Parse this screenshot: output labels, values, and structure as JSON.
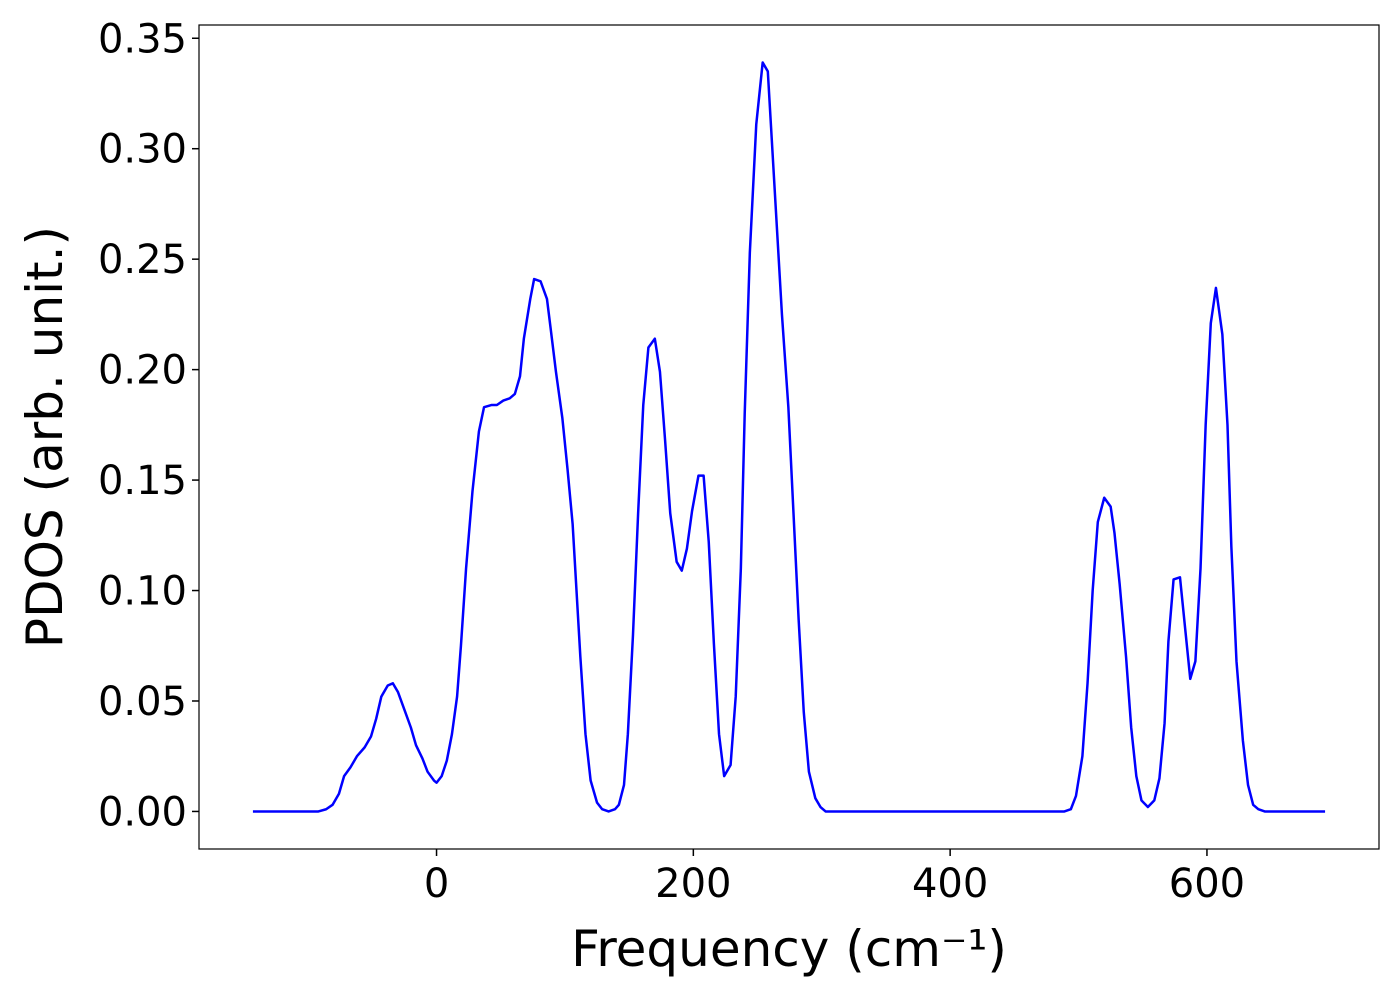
{
  "chart_data": {
    "type": "line",
    "x_label": "Frequency (cm⁻¹)",
    "y_label": "PDOS (arb. unit.)",
    "xlim": [
      -185,
      734
    ],
    "ylim": [
      -0.017,
      0.356
    ],
    "xticks": [
      0,
      200,
      400,
      600
    ],
    "yticks": [
      {
        "value": 0,
        "label": "0.00"
      },
      0.05,
      {
        "value": 0.1,
        "label": "0.10"
      },
      0.15,
      {
        "value": 0.2,
        "label": "0.20"
      },
      0.25,
      {
        "value": 0.3,
        "label": "0.30"
      },
      0.35
    ],
    "x": [
      -143,
      -92,
      -86,
      -81,
      -76,
      -72,
      -67,
      -62,
      -56,
      -51,
      -47,
      -43,
      -38,
      -34,
      -30,
      -25,
      -20,
      -16,
      -11,
      -7,
      -2,
      0,
      4,
      8,
      12,
      16,
      19,
      23,
      28,
      33,
      37,
      43,
      47,
      52,
      57,
      61,
      65,
      68,
      73,
      76,
      81,
      86,
      89,
      93,
      98,
      102,
      106,
      109,
      112,
      116,
      120,
      125,
      129,
      134,
      139,
      142,
      146,
      149,
      153,
      157,
      161,
      165,
      170,
      174,
      178,
      182,
      187,
      191,
      195,
      199,
      204,
      208,
      212,
      216,
      220,
      224,
      229,
      233,
      237,
      240,
      244,
      249,
      254,
      258,
      261,
      265,
      269,
      274,
      278,
      282,
      286,
      290,
      295,
      299,
      303,
      489,
      494,
      498,
      503,
      507,
      511,
      515,
      520,
      525,
      528,
      532,
      537,
      541,
      545,
      549,
      554,
      559,
      563,
      567,
      570,
      574,
      579,
      583,
      587,
      591,
      595,
      599,
      603,
      607,
      612,
      616,
      619,
      623,
      628,
      632,
      636,
      640,
      645,
      692
    ],
    "series": [
      {
        "name": "PDOS",
        "color": "#0000ff",
        "values": [
          0,
          0,
          0.001,
          0.003,
          0.008,
          0.016,
          0.02,
          0.025,
          0.029,
          0.034,
          0.042,
          0.052,
          0.057,
          0.058,
          0.054,
          0.046,
          0.038,
          0.03,
          0.024,
          0.018,
          0.014,
          0.013,
          0.016,
          0.023,
          0.035,
          0.052,
          0.075,
          0.11,
          0.145,
          0.172,
          0.183,
          0.184,
          0.184,
          0.186,
          0.187,
          0.189,
          0.197,
          0.214,
          0.232,
          0.241,
          0.24,
          0.232,
          0.218,
          0.199,
          0.178,
          0.155,
          0.13,
          0.1,
          0.07,
          0.035,
          0.014,
          0.004,
          0.001,
          0,
          0.001,
          0.003,
          0.012,
          0.035,
          0.08,
          0.135,
          0.184,
          0.21,
          0.214,
          0.199,
          0.168,
          0.135,
          0.113,
          0.109,
          0.119,
          0.136,
          0.152,
          0.152,
          0.122,
          0.076,
          0.035,
          0.016,
          0.021,
          0.052,
          0.11,
          0.18,
          0.253,
          0.311,
          0.339,
          0.335,
          0.305,
          0.265,
          0.225,
          0.183,
          0.135,
          0.087,
          0.045,
          0.018,
          0.006,
          0.002,
          0,
          0,
          0.001,
          0.007,
          0.025,
          0.058,
          0.1,
          0.131,
          0.142,
          0.138,
          0.126,
          0.103,
          0.07,
          0.038,
          0.016,
          0.005,
          0.002,
          0.005,
          0.015,
          0.04,
          0.077,
          0.105,
          0.106,
          0.083,
          0.06,
          0.068,
          0.11,
          0.175,
          0.221,
          0.237,
          0.216,
          0.175,
          0.12,
          0.068,
          0.032,
          0.012,
          0.003,
          0.001,
          0,
          0
        ]
      }
    ]
  }
}
